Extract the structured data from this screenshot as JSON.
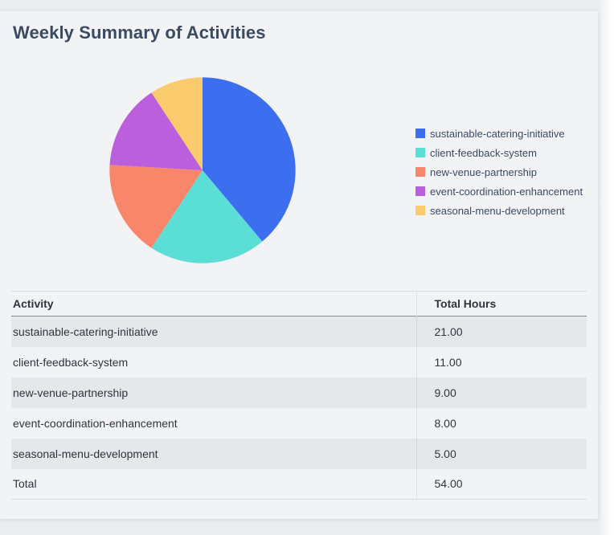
{
  "page": {
    "title": "Weekly Summary of Activities"
  },
  "chart_data": {
    "type": "pie",
    "title": "Weekly Summary of Activities",
    "categories": [
      "sustainable-catering-initiative",
      "client-feedback-system",
      "new-venue-partnership",
      "event-coordination-enhancement",
      "seasonal-menu-development"
    ],
    "values": [
      21,
      11,
      9,
      8,
      5
    ],
    "total": 54,
    "colors": [
      "#3c6ef0",
      "#5bded6",
      "#f7866a",
      "#bc5fdc",
      "#f9cb6c"
    ],
    "start_angle": "12-o-clock",
    "direction": "clockwise",
    "legend_position": "right"
  },
  "table": {
    "columns": [
      "Activity",
      "Total Hours"
    ],
    "rows": [
      {
        "activity": "sustainable-catering-initiative",
        "hours": "21.00"
      },
      {
        "activity": "client-feedback-system",
        "hours": "11.00"
      },
      {
        "activity": "new-venue-partnership",
        "hours": "9.00"
      },
      {
        "activity": "event-coordination-enhancement",
        "hours": "8.00"
      },
      {
        "activity": "seasonal-menu-development",
        "hours": "5.00"
      }
    ],
    "total_row": {
      "label": "Total",
      "value": "54.00"
    }
  },
  "colors": {
    "page_background": "#eaecef",
    "card_background": "#f2f3f5",
    "title_text": "#3a4a63",
    "table_text": "#31333f",
    "zebra_row": "#e6e7ea"
  }
}
